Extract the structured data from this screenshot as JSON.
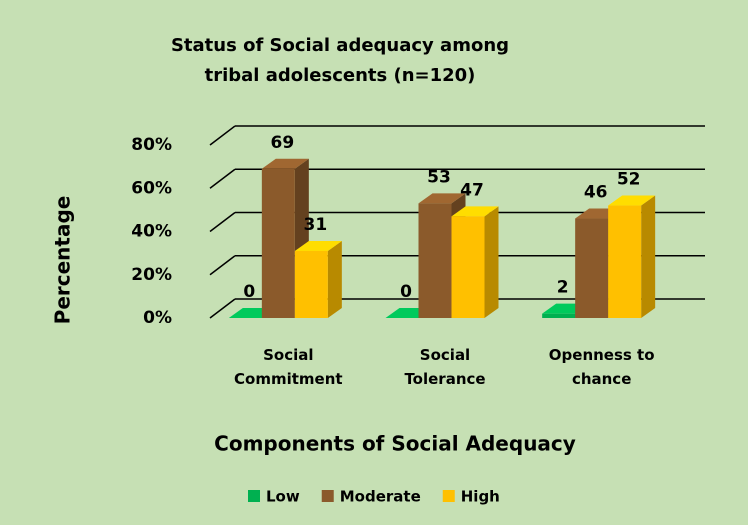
{
  "chart_data": {
    "type": "bar3d",
    "title": "Status of Social adequacy among tribal adolescents (n=120)",
    "x_label": "Components of Social Adequacy",
    "y_label": "Percentage",
    "categories": [
      "Social\nCommitment",
      "Social\nTolerance",
      "Openness to\nchance"
    ],
    "series": [
      {
        "name": "Low",
        "color": "#00b050",
        "values": [
          0,
          0,
          2
        ]
      },
      {
        "name": "Moderate",
        "color": "#8b5a2b",
        "values": [
          69,
          53,
          46
        ]
      },
      {
        "name": "High",
        "color": "#ffc000",
        "values": [
          31,
          47,
          52
        ]
      }
    ],
    "ylim": [
      0,
      80
    ],
    "yticks": [
      {
        "value": 0,
        "label": "0%"
      },
      {
        "value": 20,
        "label": "20%"
      },
      {
        "value": 40,
        "label": "40%"
      },
      {
        "value": 60,
        "label": "60%"
      },
      {
        "value": 80,
        "label": "80%"
      }
    ],
    "grid": true,
    "legend": "bottom"
  }
}
